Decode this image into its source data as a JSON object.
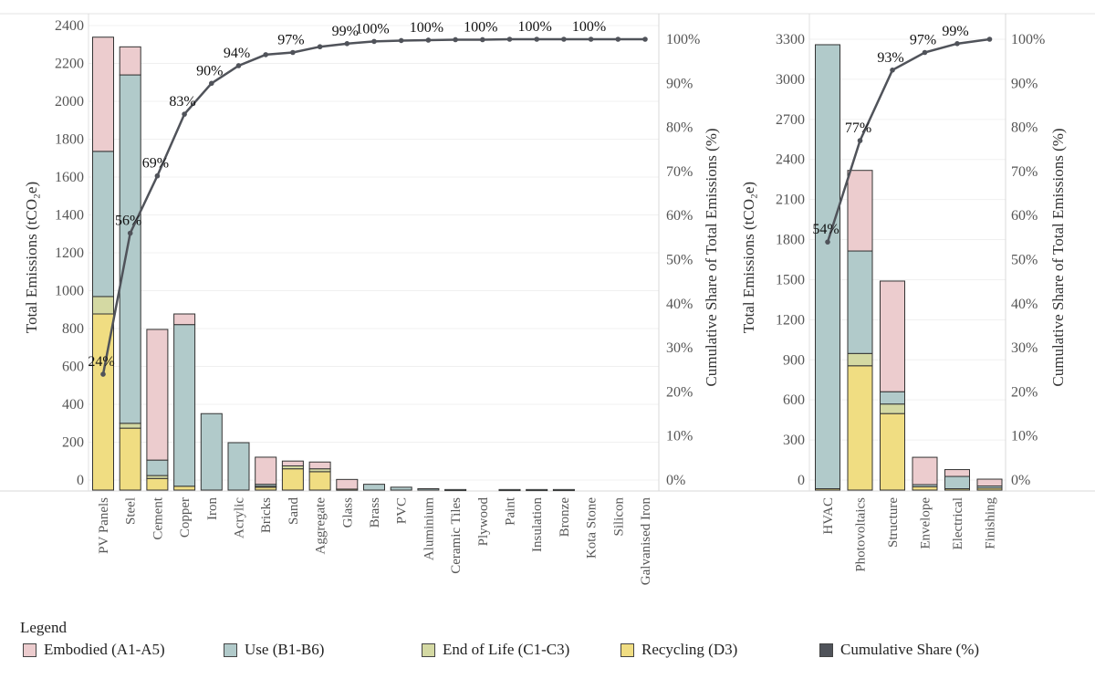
{
  "colors": {
    "embodied": "#ecccce",
    "use": "#b1caca",
    "eol": "#d4d9a3",
    "recycling": "#f0dd82",
    "line": "#50535a"
  },
  "legend": {
    "title": "Legend",
    "items": [
      {
        "key": "embodied",
        "label": "Embodied (A1-A5)"
      },
      {
        "key": "use",
        "label": "Use (B1-B6)"
      },
      {
        "key": "eol",
        "label": "End of Life (C1-C3)"
      },
      {
        "key": "recycling",
        "label": "Recycling (D3)"
      },
      {
        "key": "line",
        "label": "Cumulative Share (%)"
      }
    ]
  },
  "chart_data": [
    {
      "type": "bar",
      "stacked": true,
      "ylabel": "Total Emissions (tCO₂e)",
      "y2label": "Cumulative Share of Total Emissions (%)",
      "ylim": [
        0,
        2400
      ],
      "yticks": [
        "0",
        "200",
        "400",
        "600",
        "800",
        "1000",
        "1200",
        "1400",
        "1600",
        "1800",
        "2000",
        "2200",
        "2400"
      ],
      "y2ticks": [
        "0%",
        "10%",
        "20%",
        "30%",
        "40%",
        "50%",
        "60%",
        "70%",
        "80%",
        "90%",
        "100%"
      ],
      "categories": [
        "PV Panels",
        "Steel",
        "Cement",
        "Copper",
        "Iron",
        "Acrylic",
        "Bricks",
        "Sand",
        "Aggregate",
        "Glass",
        "Brass",
        "PVC",
        "Aluminium",
        "Ceramic Tiles",
        "Plywood",
        "Paint",
        "Insulation",
        "Bronze",
        "Kota Stone",
        "Silicon",
        "Galvanised Iron"
      ],
      "series": [
        {
          "key": "recycling",
          "name": "Recycling (D3)",
          "values": [
            910,
            320,
            60,
            20,
            0,
            0,
            15,
            110,
            95,
            5,
            0,
            0,
            0,
            0,
            0,
            0,
            0,
            0,
            0,
            0,
            0
          ]
        },
        {
          "key": "eol",
          "name": "End of Life (C1-C3)",
          "values": [
            90,
            25,
            15,
            0,
            0,
            0,
            5,
            15,
            15,
            0,
            0,
            0,
            0,
            0,
            0,
            0,
            0,
            0,
            0,
            0,
            0
          ]
        },
        {
          "key": "use",
          "name": "Use (B1-B6)",
          "values": [
            750,
            1800,
            80,
            835,
            395,
            245,
            10,
            0,
            0,
            0,
            30,
            15,
            7,
            3,
            0,
            3,
            3,
            3,
            0,
            0,
            0
          ]
        },
        {
          "key": "embodied",
          "name": "Embodied (A1-A5)",
          "values": [
            590,
            145,
            675,
            55,
            0,
            0,
            140,
            25,
            35,
            50,
            0,
            0,
            0,
            0,
            0,
            0,
            0,
            0,
            0,
            0,
            0
          ]
        }
      ],
      "cumulative": [
        24,
        56,
        69,
        83,
        90,
        94,
        96.5,
        97,
        98.3,
        99,
        99.5,
        99.7,
        99.8,
        99.9,
        99.9,
        100,
        100,
        100,
        100,
        100,
        100
      ],
      "cumulative_labels": [
        "24%",
        "56%",
        "69%",
        "83%",
        "90%",
        "94%",
        null,
        "97%",
        null,
        "99%",
        "100%",
        null,
        "100%",
        null,
        "100%",
        null,
        "100%",
        null,
        "100%",
        null,
        null
      ]
    },
    {
      "type": "bar",
      "stacked": true,
      "ylabel": "Total Emissions (tCO₂e)",
      "y2label": "Cumulative Share of Total Emissions (%)",
      "ylim": [
        0,
        3300
      ],
      "yticks": [
        "0",
        "300",
        "600",
        "900",
        "1200",
        "1500",
        "1800",
        "2100",
        "2400",
        "2700",
        "3000",
        "3300"
      ],
      "y2ticks": [
        "0%",
        "10%",
        "20%",
        "30%",
        "40%",
        "50%",
        "60%",
        "70%",
        "80%",
        "90%",
        "100%"
      ],
      "categories": [
        "HVAC",
        "Photovoltaics",
        "Structure",
        "Envelope",
        "Electrical",
        "Finishing"
      ],
      "series": [
        {
          "key": "recycling",
          "name": "Recycling (D3)",
          "values": [
            10,
            910,
            560,
            25,
            10,
            15
          ]
        },
        {
          "key": "eol",
          "name": "End of Life (C1-C3)",
          "values": [
            0,
            90,
            70,
            0,
            0,
            0
          ]
        },
        {
          "key": "use",
          "name": "Use (B1-B6)",
          "values": [
            3250,
            750,
            90,
            15,
            90,
            15
          ]
        },
        {
          "key": "embodied",
          "name": "Embodied (A1-A5)",
          "values": [
            0,
            590,
            810,
            200,
            50,
            50
          ]
        }
      ],
      "cumulative": [
        54,
        77,
        93,
        97,
        99,
        100
      ],
      "cumulative_labels": [
        "54%",
        "77%",
        "93%",
        "97%",
        "99%",
        null
      ]
    }
  ]
}
